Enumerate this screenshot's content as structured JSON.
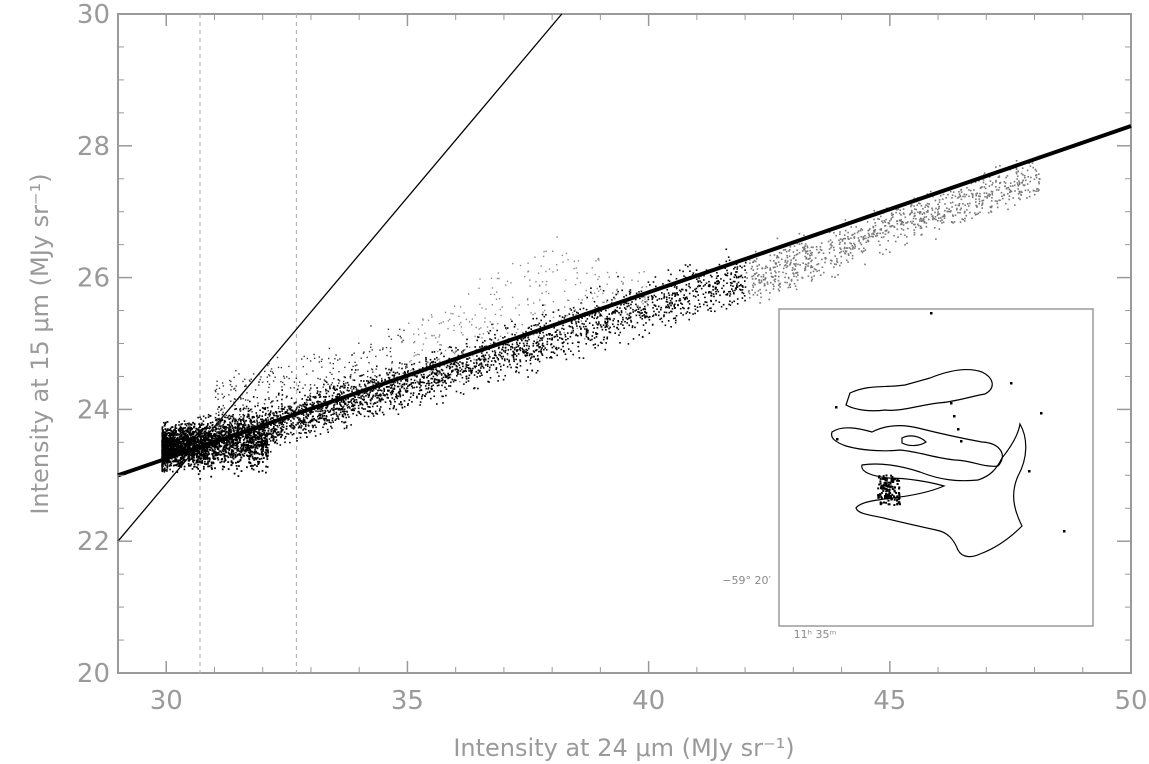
{
  "chart_data": {
    "type": "scatter",
    "title": "",
    "xlabel": "Intensity at 24 μm (MJy sr⁻¹)",
    "ylabel": "Intensity at 15 μm (MJy sr⁻¹)",
    "xlim": [
      29,
      50
    ],
    "ylim": [
      20,
      30
    ],
    "x_ticks": [
      30,
      35,
      40,
      45,
      50
    ],
    "x_tick_labels": [
      "30",
      "35",
      "40",
      "45",
      "50"
    ],
    "y_ticks": [
      20,
      22,
      24,
      26,
      28,
      30
    ],
    "y_tick_labels": [
      "20",
      "22",
      "24",
      "26",
      "28",
      "30"
    ],
    "grid": false,
    "lines": [
      {
        "style": "thick-solid",
        "x": [
          29,
          50
        ],
        "y": [
          23.0,
          28.3
        ]
      },
      {
        "style": "thin-solid",
        "x": [
          29,
          38.2
        ],
        "y": [
          22.0,
          30.0
        ]
      }
    ],
    "vertical_dashed_lines_x": [
      30.7,
      32.7
    ],
    "scatter_envelope": {
      "x": [
        29.9,
        32,
        35,
        38,
        40,
        43,
        45,
        48
      ],
      "y_center": [
        23.4,
        23.75,
        24.4,
        25.1,
        25.6,
        26.2,
        26.8,
        27.5
      ],
      "y_spread": [
        0.25,
        0.3,
        0.3,
        0.35,
        0.35,
        0.35,
        0.3,
        0.3
      ]
    },
    "scatter_excess_branch": {
      "x": [
        31,
        32,
        33,
        34,
        35,
        36,
        37,
        38,
        39,
        40
      ],
      "y_center": [
        24.3,
        24.7,
        24.8,
        25.0,
        25.2,
        25.6,
        26.2,
        26.5,
        26.2,
        25.9
      ]
    },
    "inset": {
      "labels": {
        "dec": "−59° 20′",
        "ra": "11ʰ 35ᵐ"
      },
      "contour_color": "#000000"
    },
    "colors": {
      "axes": "#9a9a9a",
      "points": "#000000",
      "fit_line": "#000000",
      "dashed": "#b4b4b4"
    }
  }
}
